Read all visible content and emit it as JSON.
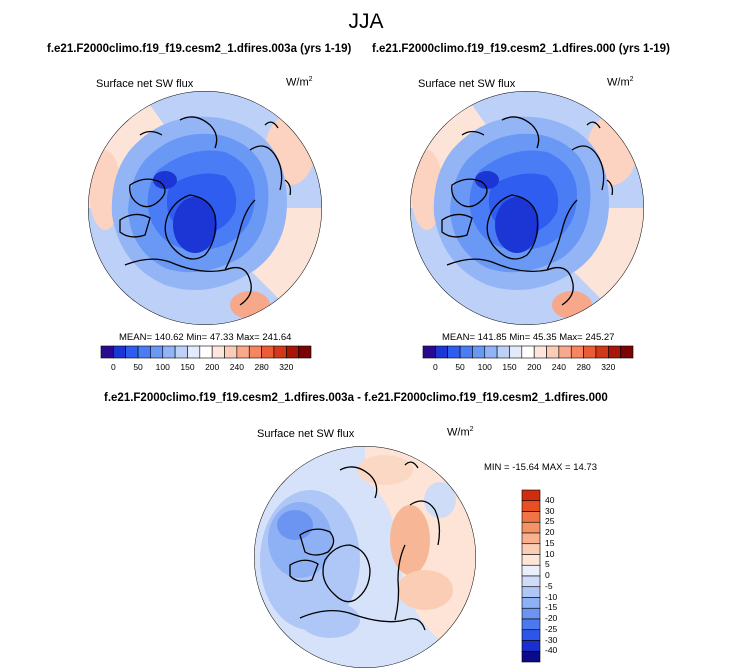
{
  "season": "JJA",
  "colors": {
    "abs": [
      "#2a0b8f",
      "#1c36d6",
      "#2f5df0",
      "#4a7df5",
      "#6a98f5",
      "#92b4f6",
      "#bdd0f8",
      "#e2ebfb",
      "#ffffff",
      "#fde7dc",
      "#fcccb6",
      "#f9a98b",
      "#f68560",
      "#ea5c35",
      "#d2381a",
      "#a8160a",
      "#7a0404"
    ],
    "diff": [
      "#0a0a8a",
      "#1a2fd0",
      "#2e55ea",
      "#4d78f0",
      "#6c95f2",
      "#8eb0f4",
      "#aec7f6",
      "#cfdcf8",
      "#eaf0fb",
      "#fde6d8",
      "#fbcdb4",
      "#f8b08e",
      "#f59367",
      "#f17444",
      "#e84f24",
      "#cf2e0e"
    ]
  },
  "panels": [
    {
      "case": "f.e21.F2000climo.f19_f19.cesm2_1.dfires.003a (yrs 1-19)",
      "variable": "Surface net SW flux",
      "units": "W/m",
      "units_exp": "2",
      "stats": "MEAN= 140.62  Min=  47.33  Max= 241.64",
      "ticks": [
        "0",
        "50",
        "100",
        "150",
        "200",
        "240",
        "280",
        "320"
      ]
    },
    {
      "case": "f.e21.F2000climo.f19_f19.cesm2_1.dfires.000 (yrs 1-19)",
      "variable": "Surface net SW flux",
      "units": "W/m",
      "units_exp": "2",
      "stats": "MEAN= 141.85  Min=  45.35  Max= 245.27",
      "ticks": [
        "0",
        "50",
        "100",
        "150",
        "200",
        "240",
        "280",
        "320"
      ]
    }
  ],
  "diff": {
    "title": "f.e21.F2000climo.f19_f19.cesm2_1.dfires.003a - f.e21.F2000climo.f19_f19.cesm2_1.dfires.000",
    "variable": "Surface net SW flux",
    "units": "W/m",
    "units_exp": "2",
    "stats": "MIN = -15.64  MAX =  14.73",
    "ticks": [
      "40",
      "30",
      "25",
      "20",
      "15",
      "10",
      "5",
      "0",
      "-5",
      "-10",
      "-15",
      "-20",
      "-25",
      "-30",
      "-40"
    ]
  }
}
